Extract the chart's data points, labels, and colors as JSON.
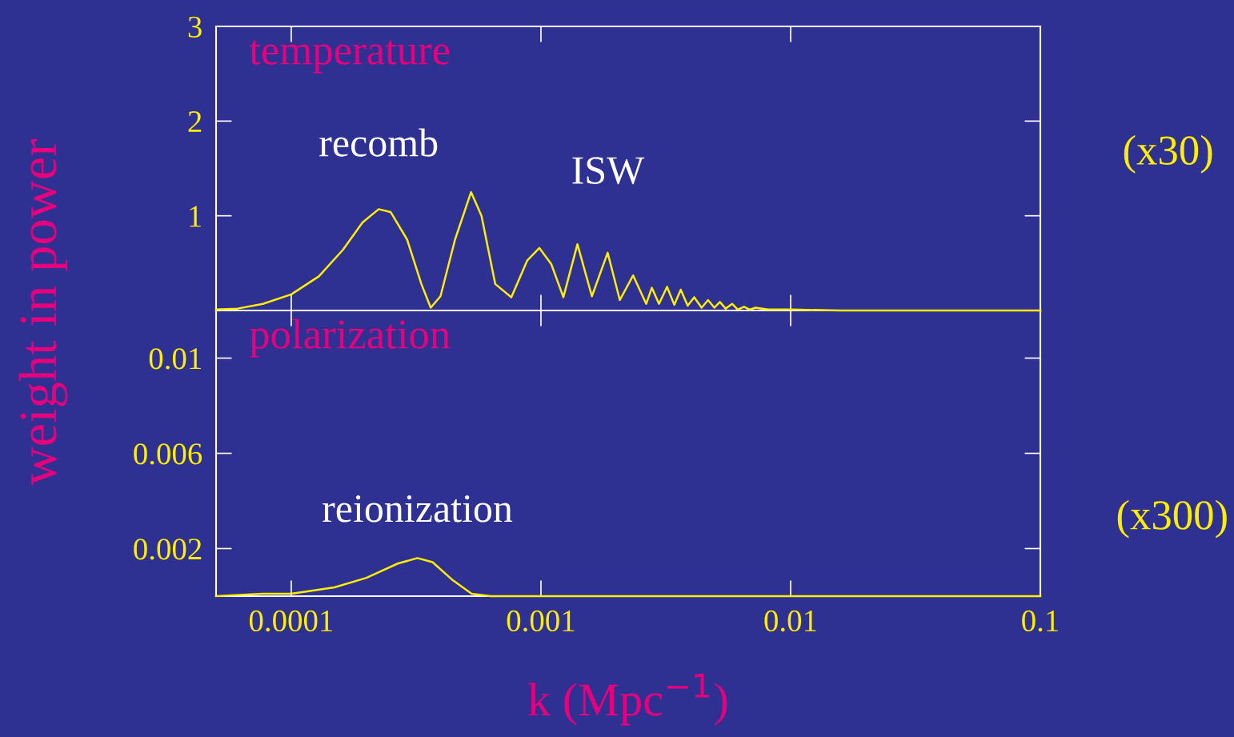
{
  "chart_data": [
    {
      "type": "line",
      "title": "temperature",
      "ylabel": "weight in power",
      "log": "x",
      "xlim": [
        5e-05,
        0.1
      ],
      "xticks": [
        0.0001,
        0.001,
        0.01,
        0.1
      ],
      "ylim": [
        0,
        3
      ],
      "yticks": [
        1,
        2,
        3
      ],
      "tick_labels": "y",
      "grid": false,
      "legend": false,
      "x": [
        5e-05,
        6.1e-05,
        7.7e-05,
        0.0001,
        0.000129,
        0.000161,
        0.000193,
        0.000224,
        0.00025,
        0.000291,
        0.000332,
        0.000362,
        0.000396,
        0.000453,
        0.000525,
        0.000578,
        0.000656,
        0.000761,
        0.000882,
        0.000986,
        0.0011,
        0.00123,
        0.0014,
        0.0016,
        0.00185,
        0.00207,
        0.00234,
        0.00264,
        0.00278,
        0.00297,
        0.0032,
        0.00342,
        0.00363,
        0.00387,
        0.00411,
        0.0044,
        0.00467,
        0.00495,
        0.00521,
        0.00549,
        0.00583,
        0.00614,
        0.00651,
        0.00686,
        0.00723,
        0.00813,
        0.0101,
        0.0158,
        0.1
      ],
      "series": [
        {
          "color": "#ffee00",
          "values": [
            0.01,
            0.02,
            0.07,
            0.17,
            0.36,
            0.64,
            0.93,
            1.07,
            1.04,
            0.75,
            0.28,
            0.03,
            0.15,
            0.75,
            1.25,
            1.0,
            0.28,
            0.14,
            0.53,
            0.66,
            0.49,
            0.14,
            0.7,
            0.15,
            0.61,
            0.11,
            0.37,
            0.07,
            0.24,
            0.07,
            0.25,
            0.06,
            0.22,
            0.05,
            0.14,
            0.03,
            0.11,
            0.03,
            0.09,
            0.02,
            0.07,
            0.01,
            0.04,
            0.01,
            0.03,
            0.01,
            0.01,
            0,
            0
          ]
        }
      ],
      "annotations": [
        {
          "text": "recomb",
          "x": 0.000224,
          "y": 1.07
        },
        {
          "text": "ISW",
          "x": 0.000525,
          "y": 1.25
        },
        "(x30)"
      ]
    },
    {
      "type": "line",
      "title": "polarization",
      "xlabel": "k (Mpc$^{−1}$)",
      "log": "x",
      "xlim": [
        5e-05,
        0.1
      ],
      "xticks": [
        0.0001,
        0.001,
        0.01,
        0.1
      ],
      "ylim": [
        0,
        0.012
      ],
      "yticks": [
        0.002,
        0.006,
        0.01
      ],
      "grid": false,
      "legend": false,
      "x": [
        5e-05,
        7.7e-05,
        0.0001,
        0.000149,
        0.0002,
        0.000267,
        0.00032,
        0.000368,
        0.00044,
        0.000528,
        0.00063,
        0.1
      ],
      "series": [
        {
          "color": "#ffee00",
          "values": [
            0,
            0.0001,
            0.0001,
            0.00037,
            0.00077,
            0.00137,
            0.0016,
            0.00143,
            0.0007,
            0.0001,
            0,
            0
          ]
        }
      ],
      "annotations": [
        {
          "text": "reionization",
          "x": 0.00032,
          "y": 0.0016
        },
        "(x300)"
      ]
    }
  ]
}
